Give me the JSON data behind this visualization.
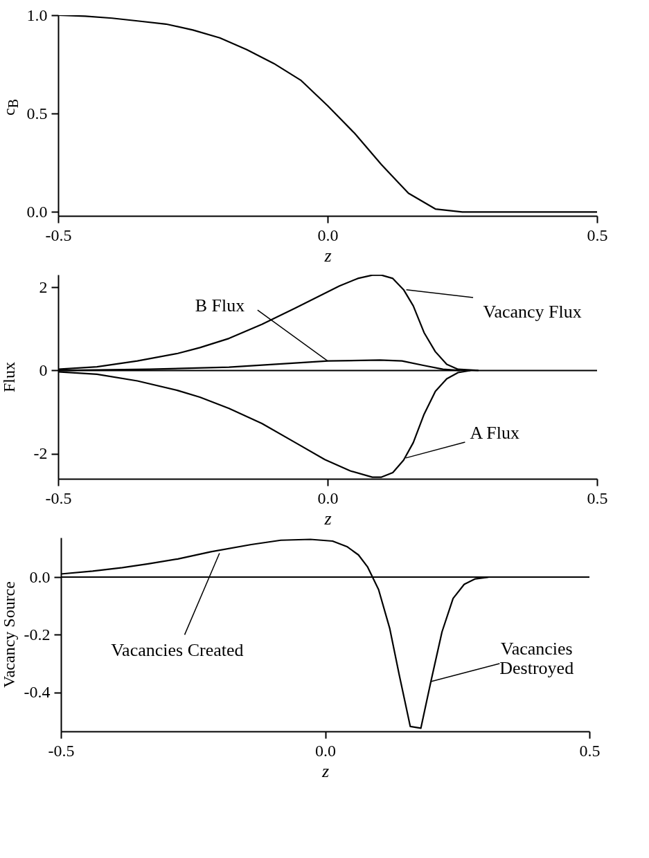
{
  "chart_data": [
    {
      "type": "line",
      "ylabel": "c$_{B}$",
      "xlabel": "z",
      "x": [
        -0.5,
        -0.45,
        -0.4,
        -0.35,
        -0.3,
        -0.25,
        -0.2,
        -0.15,
        -0.1,
        -0.05,
        0.0,
        0.05,
        0.1,
        0.15,
        0.2,
        0.25,
        0.3,
        0.35,
        0.4,
        0.45,
        0.5
      ],
      "series": [
        {
          "color": "#000000",
          "values": [
            1.0,
            0.995,
            0.985,
            0.97,
            0.955,
            0.925,
            0.885,
            0.825,
            0.755,
            0.67,
            0.54,
            0.4,
            0.24,
            0.095,
            0.015,
            0.0,
            0.0,
            0.0,
            0.0,
            0.0,
            0.0
          ]
        }
      ],
      "xlim": [
        -0.5,
        0.5
      ],
      "ylim": [
        -0.02,
        1.0
      ],
      "xticks": [
        {
          "value": -0.5,
          "label": "-0.5"
        },
        {
          "value": 0,
          "label": "0.0"
        },
        {
          "value": 0.5,
          "label": "0.5"
        }
      ],
      "yticks": [
        {
          "value": 0,
          "label": "0.0"
        },
        {
          "value": 0.5,
          "label": "0.5"
        },
        {
          "value": 1,
          "label": "1.0"
        }
      ]
    },
    {
      "type": "line",
      "ylabel": "Flux",
      "xlabel": "z",
      "series": [
        {
          "name": "Vacancy Flux",
          "color": "#000000",
          "x": [
            -0.5,
            -0.428,
            -0.353,
            -0.278,
            -0.237,
            -0.183,
            -0.122,
            -0.06,
            0.022,
            0.056,
            0.083,
            0.1,
            0.121,
            0.141,
            0.159,
            0.179,
            0.2,
            0.221,
            0.242,
            0.28
          ],
          "values": [
            0.03,
            0.09,
            0.23,
            0.41,
            0.55,
            0.77,
            1.11,
            1.5,
            2.03,
            2.21,
            2.29,
            2.29,
            2.21,
            1.94,
            1.55,
            0.91,
            0.45,
            0.15,
            0.03,
            0.0
          ]
        },
        {
          "name": "B Flux",
          "color": "#000000",
          "x": [
            -0.5,
            -0.33,
            -0.183,
            -0.06,
            0.001,
            0.097,
            0.138,
            0.179,
            0.214,
            0.245
          ],
          "values": [
            0.0,
            0.03,
            0.08,
            0.18,
            0.23,
            0.25,
            0.23,
            0.12,
            0.03,
            0.0
          ]
        },
        {
          "name": "A Flux",
          "color": "#000000",
          "x": [
            -0.5,
            -0.428,
            -0.353,
            -0.278,
            -0.237,
            -0.183,
            -0.122,
            -0.06,
            -0.005,
            0.042,
            0.083,
            0.1,
            0.121,
            0.141,
            0.159,
            0.179,
            0.2,
            0.221,
            0.242,
            0.265
          ],
          "values": [
            -0.03,
            -0.09,
            -0.25,
            -0.48,
            -0.64,
            -0.91,
            -1.27,
            -1.73,
            -2.14,
            -2.41,
            -2.56,
            -2.56,
            -2.45,
            -2.15,
            -1.73,
            -1.05,
            -0.5,
            -0.2,
            -0.05,
            0.0
          ]
        }
      ],
      "ref_lines": [
        {
          "axis": "y",
          "value": 0
        }
      ],
      "xlim": [
        -0.5,
        0.5
      ],
      "ylim": [
        -2.6,
        2.3
      ],
      "xticks": [
        {
          "value": -0.5,
          "label": "-0.5"
        },
        {
          "value": 0,
          "label": "0.0"
        },
        {
          "value": 0.5,
          "label": "0.5"
        }
      ],
      "yticks": [
        {
          "value": -2,
          "label": "-2"
        },
        0,
        2
      ]
    },
    {
      "type": "line",
      "ylabel": "Vacancy Source",
      "xlabel": "z",
      "x": [
        -0.5,
        -0.44,
        -0.384,
        -0.335,
        -0.279,
        -0.216,
        -0.14,
        -0.084,
        -0.028,
        0.014,
        0.042,
        0.063,
        0.08,
        0.101,
        0.122,
        0.14,
        0.161,
        0.181,
        0.2,
        0.221,
        0.242,
        0.263,
        0.284,
        0.309
      ],
      "series": [
        {
          "color": "#000000",
          "values": [
            0.011,
            0.021,
            0.033,
            0.046,
            0.063,
            0.088,
            0.113,
            0.128,
            0.131,
            0.125,
            0.105,
            0.077,
            0.036,
            -0.043,
            -0.177,
            -0.338,
            -0.518,
            -0.524,
            -0.362,
            -0.19,
            -0.074,
            -0.025,
            -0.006,
            0.0
          ]
        }
      ],
      "ref_lines": [
        {
          "axis": "y",
          "value": 0
        }
      ],
      "annotations": [
        {
          "text": "Vacancies Created",
          "x": -0.2,
          "y": 0.083
        },
        {
          "text": "Vacancies\nDestroyed",
          "x": 0.2,
          "y": -0.362
        }
      ],
      "xlim": [
        -0.5,
        0.5
      ],
      "ylim": [
        -0.535,
        0.137
      ],
      "xticks": [
        {
          "value": -0.5,
          "label": "-0.5"
        },
        {
          "value": 0,
          "label": "0.0"
        },
        {
          "value": 0.5,
          "label": "0.5"
        }
      ],
      "yticks": [
        {
          "value": -0.4,
          "label": "-0.4"
        },
        {
          "value": -0.2,
          "label": "-0.2"
        },
        {
          "value": 0,
          "label": "0.0"
        }
      ]
    }
  ]
}
